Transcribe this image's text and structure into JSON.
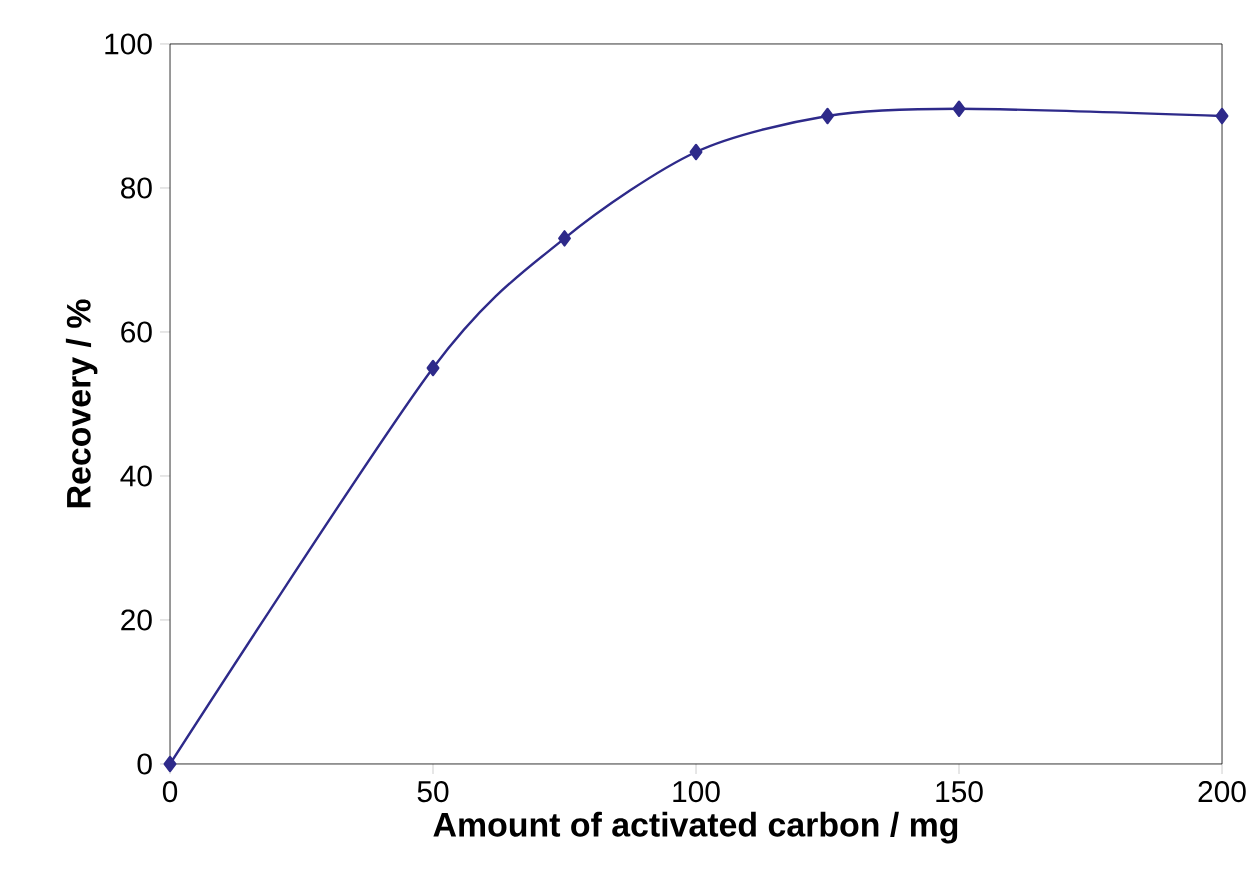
{
  "chart_data": {
    "type": "line",
    "xlabel": "Amount of activated carbon / mg",
    "ylabel": "Recovery / %",
    "x": [
      0,
      50,
      75,
      100,
      125,
      150,
      200
    ],
    "series": [
      {
        "color": "#2e2a8a",
        "values": [
          0,
          55,
          73,
          85,
          90,
          91,
          90
        ]
      }
    ],
    "xlim": [
      0,
      200
    ],
    "ylim": [
      0,
      100
    ],
    "xticks": [
      0,
      50,
      100,
      150,
      200
    ],
    "yticks": [
      0,
      20,
      40,
      60,
      80,
      100
    ],
    "grid": false,
    "marker": "diamond",
    "line_style": "solid"
  }
}
